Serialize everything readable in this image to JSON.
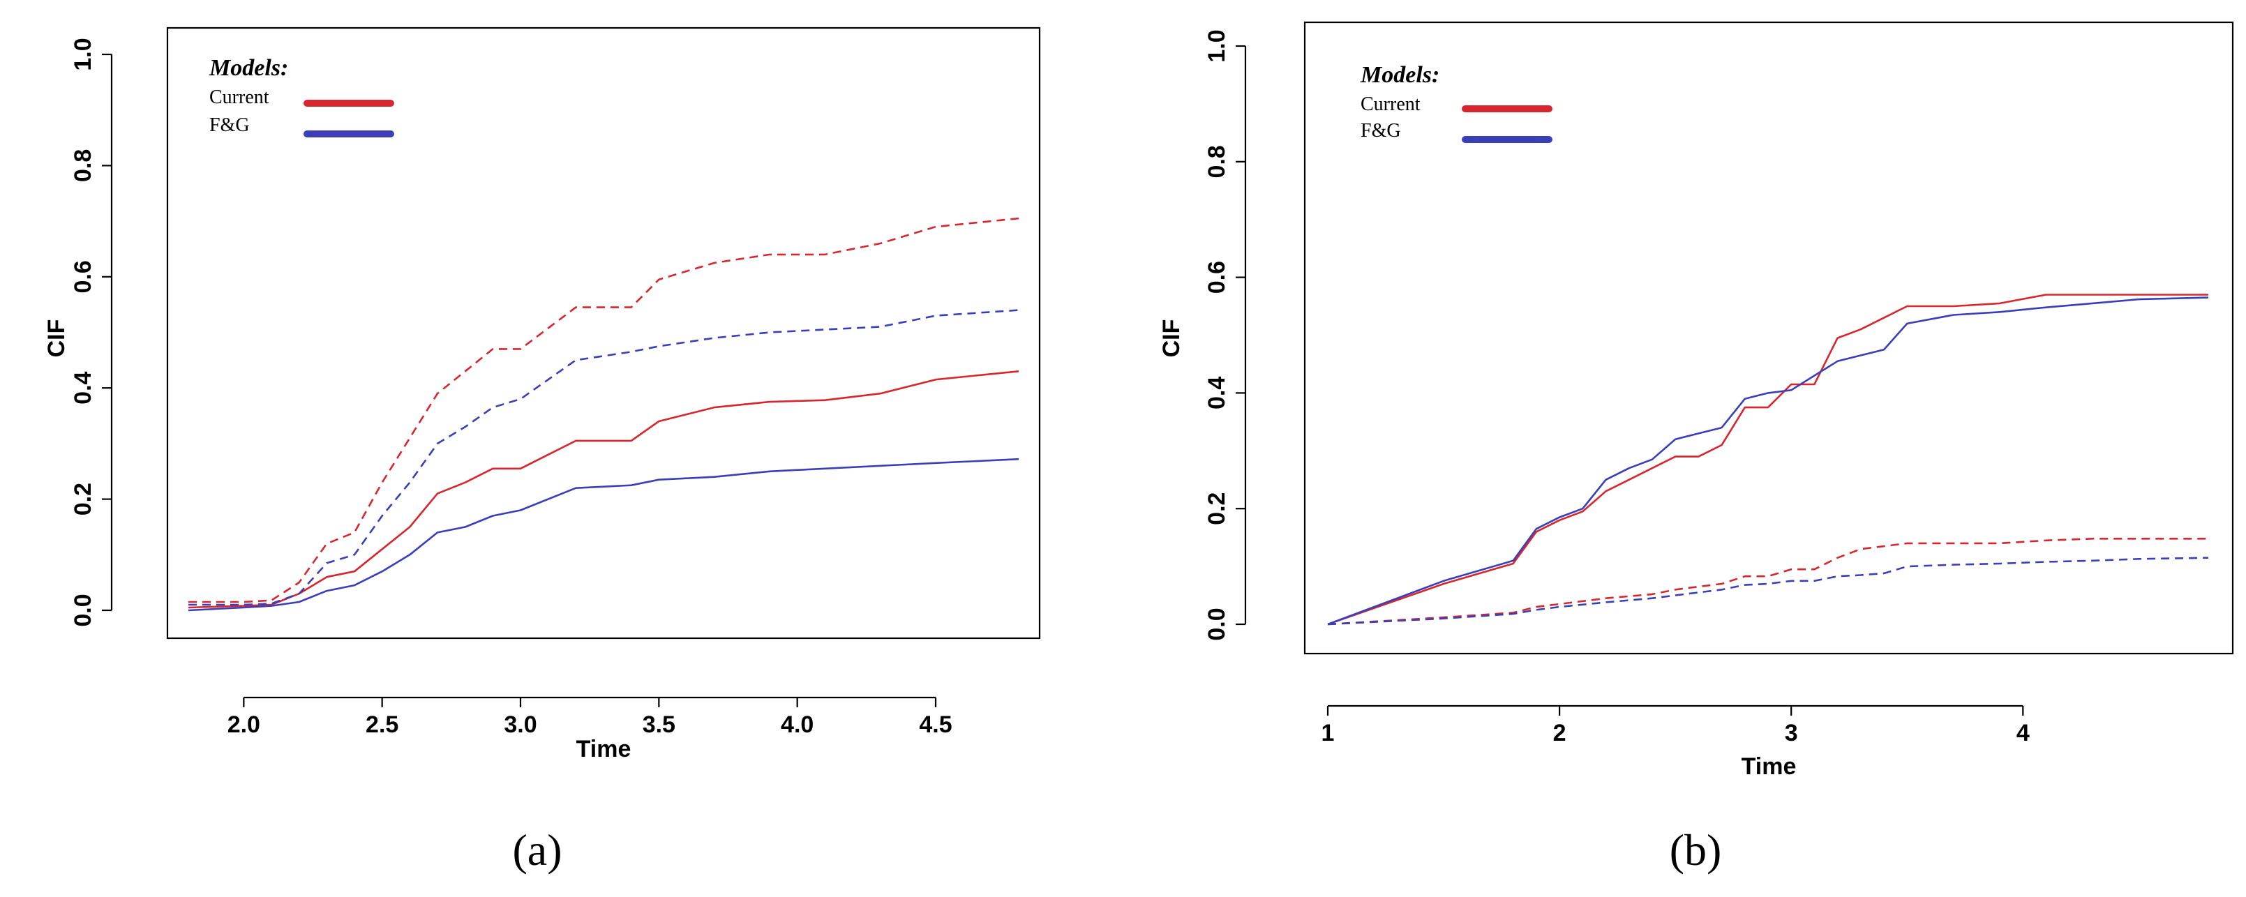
{
  "colors": {
    "current": "#d7262e",
    "fg": "#3a3fb8"
  },
  "chart_data": [
    {
      "type": "line",
      "panel_label": "(a)",
      "xlabel": "Time",
      "ylabel": "CIF",
      "xlim": [
        1.8,
        4.8
      ],
      "ylim": [
        0,
        1
      ],
      "xticks": [
        2.0,
        2.5,
        3.0,
        3.5,
        4.0,
        4.5
      ],
      "xtick_labels": [
        "2.0",
        "2.5",
        "3.0",
        "3.5",
        "4.0",
        "4.5"
      ],
      "yticks": [
        0.0,
        0.2,
        0.4,
        0.6,
        0.8,
        1.0
      ],
      "ytick_labels": [
        "0.0",
        "0.2",
        "0.4",
        "0.6",
        "0.8",
        "1.0"
      ],
      "legend": {
        "title": "Models:",
        "entries": [
          {
            "label": "Current",
            "color_key": "current"
          },
          {
            "label": "F&G",
            "color_key": "fg"
          }
        ]
      },
      "series": [
        {
          "name": "Current (solid)",
          "color_key": "current",
          "style": "solid",
          "x": [
            1.8,
            2.0,
            2.1,
            2.2,
            2.3,
            2.4,
            2.5,
            2.6,
            2.7,
            2.8,
            2.9,
            3.0,
            3.2,
            3.4,
            3.5,
            3.7,
            3.9,
            4.1,
            4.3,
            4.5,
            4.8
          ],
          "y": [
            0.005,
            0.008,
            0.01,
            0.03,
            0.06,
            0.07,
            0.11,
            0.15,
            0.21,
            0.23,
            0.255,
            0.255,
            0.305,
            0.305,
            0.34,
            0.365,
            0.375,
            0.378,
            0.39,
            0.415,
            0.43
          ]
        },
        {
          "name": "F&G (solid)",
          "color_key": "fg",
          "style": "solid",
          "x": [
            1.8,
            2.0,
            2.1,
            2.2,
            2.3,
            2.4,
            2.5,
            2.6,
            2.7,
            2.8,
            2.9,
            3.0,
            3.2,
            3.4,
            3.5,
            3.7,
            3.9,
            4.1,
            4.3,
            4.5,
            4.8
          ],
          "y": [
            0.0,
            0.005,
            0.008,
            0.015,
            0.035,
            0.045,
            0.07,
            0.1,
            0.14,
            0.15,
            0.17,
            0.18,
            0.22,
            0.225,
            0.235,
            0.24,
            0.25,
            0.255,
            0.26,
            0.265,
            0.272
          ]
        },
        {
          "name": "Current (dashed)",
          "color_key": "current",
          "style": "dashed",
          "x": [
            1.8,
            2.0,
            2.1,
            2.2,
            2.3,
            2.4,
            2.5,
            2.6,
            2.7,
            2.8,
            2.9,
            3.0,
            3.2,
            3.4,
            3.5,
            3.7,
            3.9,
            4.1,
            4.3,
            4.5,
            4.8
          ],
          "y": [
            0.015,
            0.015,
            0.018,
            0.05,
            0.12,
            0.14,
            0.23,
            0.31,
            0.39,
            0.43,
            0.47,
            0.47,
            0.545,
            0.545,
            0.595,
            0.625,
            0.64,
            0.64,
            0.66,
            0.69,
            0.705
          ]
        },
        {
          "name": "F&G (dashed)",
          "color_key": "fg",
          "style": "dashed",
          "x": [
            1.8,
            2.0,
            2.1,
            2.2,
            2.3,
            2.4,
            2.5,
            2.6,
            2.7,
            2.8,
            2.9,
            3.0,
            3.2,
            3.4,
            3.5,
            3.7,
            3.9,
            4.1,
            4.3,
            4.5,
            4.8
          ],
          "y": [
            0.01,
            0.01,
            0.012,
            0.03,
            0.085,
            0.1,
            0.17,
            0.23,
            0.3,
            0.33,
            0.365,
            0.38,
            0.45,
            0.465,
            0.475,
            0.49,
            0.5,
            0.505,
            0.51,
            0.53,
            0.54
          ]
        }
      ]
    },
    {
      "type": "line",
      "panel_label": "(b)",
      "xlabel": "Time",
      "ylabel": "CIF",
      "xlim": [
        1,
        4.8
      ],
      "ylim": [
        0,
        1
      ],
      "xticks": [
        1,
        2,
        3,
        4
      ],
      "xtick_labels": [
        "1",
        "2",
        "3",
        "4"
      ],
      "yticks": [
        0.0,
        0.2,
        0.4,
        0.6,
        0.8,
        1.0
      ],
      "ytick_labels": [
        "0.0",
        "0.2",
        "0.4",
        "0.6",
        "0.8",
        "1.0"
      ],
      "legend": {
        "title": "Models:",
        "entries": [
          {
            "label": "Current",
            "color_key": "current"
          },
          {
            "label": "F&G",
            "color_key": "fg"
          }
        ]
      },
      "series": [
        {
          "name": "Current (solid)",
          "color_key": "current",
          "style": "solid",
          "x": [
            1.0,
            1.5,
            1.8,
            1.9,
            2.0,
            2.1,
            2.2,
            2.3,
            2.4,
            2.5,
            2.6,
            2.7,
            2.8,
            2.9,
            3.0,
            3.1,
            3.2,
            3.3,
            3.4,
            3.5,
            3.7,
            3.9,
            4.1,
            4.3,
            4.5,
            4.8
          ],
          "y": [
            0.0,
            0.07,
            0.105,
            0.16,
            0.18,
            0.195,
            0.23,
            0.25,
            0.27,
            0.29,
            0.29,
            0.31,
            0.375,
            0.375,
            0.415,
            0.415,
            0.495,
            0.51,
            0.53,
            0.55,
            0.55,
            0.555,
            0.57,
            0.57,
            0.57,
            0.57
          ]
        },
        {
          "name": "F&G (solid)",
          "color_key": "fg",
          "style": "solid",
          "x": [
            1.0,
            1.5,
            1.8,
            1.9,
            2.0,
            2.1,
            2.2,
            2.3,
            2.4,
            2.5,
            2.6,
            2.7,
            2.8,
            2.9,
            3.0,
            3.1,
            3.2,
            3.3,
            3.4,
            3.5,
            3.7,
            3.9,
            4.1,
            4.3,
            4.5,
            4.8
          ],
          "y": [
            0.0,
            0.075,
            0.11,
            0.165,
            0.185,
            0.2,
            0.25,
            0.27,
            0.285,
            0.32,
            0.33,
            0.34,
            0.39,
            0.4,
            0.405,
            0.43,
            0.455,
            0.465,
            0.475,
            0.52,
            0.535,
            0.54,
            0.548,
            0.555,
            0.562,
            0.565
          ]
        },
        {
          "name": "Current (dashed)",
          "color_key": "current",
          "style": "dashed",
          "x": [
            1.0,
            1.5,
            1.8,
            1.9,
            2.0,
            2.2,
            2.4,
            2.5,
            2.6,
            2.7,
            2.8,
            2.9,
            3.0,
            3.1,
            3.2,
            3.3,
            3.4,
            3.5,
            3.7,
            3.9,
            4.1,
            4.3,
            4.5,
            4.8
          ],
          "y": [
            0.0,
            0.012,
            0.02,
            0.03,
            0.035,
            0.045,
            0.052,
            0.06,
            0.065,
            0.07,
            0.083,
            0.083,
            0.095,
            0.095,
            0.115,
            0.13,
            0.135,
            0.14,
            0.14,
            0.14,
            0.145,
            0.148,
            0.148,
            0.148
          ]
        },
        {
          "name": "F&G (dashed)",
          "color_key": "fg",
          "style": "dashed",
          "x": [
            1.0,
            1.5,
            1.8,
            1.9,
            2.0,
            2.2,
            2.4,
            2.5,
            2.6,
            2.7,
            2.8,
            2.9,
            3.0,
            3.1,
            3.2,
            3.3,
            3.4,
            3.5,
            3.7,
            3.9,
            4.1,
            4.3,
            4.5,
            4.8
          ],
          "y": [
            0.0,
            0.01,
            0.018,
            0.025,
            0.03,
            0.038,
            0.045,
            0.05,
            0.055,
            0.06,
            0.068,
            0.07,
            0.075,
            0.075,
            0.083,
            0.085,
            0.088,
            0.1,
            0.103,
            0.105,
            0.108,
            0.11,
            0.113,
            0.115
          ]
        }
      ]
    }
  ]
}
